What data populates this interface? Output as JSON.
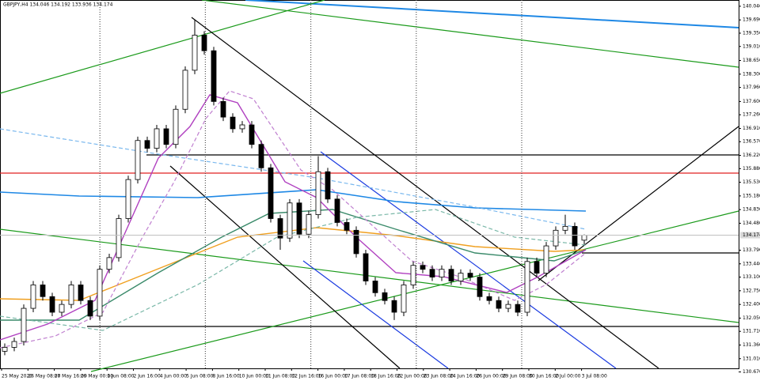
{
  "chart_data": {
    "type": "candlestick",
    "title": "GBPJPY,H4  134.046 134.192 133.936 134.174",
    "open": [
      131.2,
      131.3,
      131.45,
      132.3,
      132.9,
      132.6,
      132.2,
      132.4,
      132.9,
      132.5,
      132.1,
      133.3,
      133.6,
      134.6,
      135.6,
      136.6,
      136.4,
      136.9,
      136.5,
      137.4,
      138.4,
      139.3,
      138.9,
      137.6,
      137.2,
      136.9,
      137.0,
      136.5,
      135.9,
      134.6,
      134.1,
      135.0,
      134.2,
      134.7,
      135.8,
      135.1,
      134.5,
      134.3,
      133.7,
      133.0,
      132.7,
      132.5,
      132.2,
      132.9,
      133.4,
      133.3,
      133.1,
      133.3,
      133.0,
      133.2,
      133.1,
      132.6,
      132.5,
      132.3,
      132.4,
      132.2,
      133.5,
      133.2,
      133.9,
      134.3,
      134.4,
      134.046
    ],
    "high": [
      131.4,
      131.55,
      132.4,
      133.0,
      133.0,
      132.7,
      132.5,
      133.0,
      133.0,
      132.6,
      133.4,
      133.7,
      134.7,
      135.7,
      136.7,
      136.7,
      137.0,
      137.0,
      137.5,
      138.5,
      139.7,
      139.4,
      139.0,
      137.7,
      137.3,
      137.1,
      137.1,
      136.6,
      136.0,
      134.7,
      135.1,
      135.1,
      134.8,
      136.2,
      135.9,
      135.2,
      134.6,
      134.4,
      133.8,
      133.1,
      132.8,
      132.6,
      133.0,
      133.5,
      133.5,
      133.4,
      133.4,
      133.4,
      133.3,
      133.3,
      133.2,
      132.7,
      132.6,
      132.5,
      132.5,
      133.6,
      133.6,
      134.0,
      134.4,
      134.7,
      134.5,
      134.192
    ],
    "low": [
      131.1,
      131.2,
      131.35,
      132.2,
      132.5,
      132.1,
      132.1,
      132.3,
      132.4,
      132.0,
      132.0,
      133.2,
      133.5,
      134.5,
      135.5,
      136.3,
      136.3,
      136.4,
      136.4,
      137.3,
      138.3,
      138.8,
      137.5,
      137.1,
      136.8,
      136.8,
      136.4,
      135.8,
      134.5,
      133.8,
      134.0,
      134.1,
      134.1,
      134.6,
      135.0,
      134.4,
      134.2,
      133.6,
      132.9,
      132.6,
      132.4,
      132.0,
      132.1,
      132.8,
      133.2,
      133.0,
      133.0,
      132.9,
      132.9,
      133.0,
      132.5,
      132.4,
      132.2,
      132.2,
      132.1,
      132.1,
      133.1,
      133.1,
      133.8,
      134.2,
      133.8,
      133.936
    ],
    "close": [
      131.3,
      131.45,
      132.3,
      132.9,
      132.6,
      132.2,
      132.4,
      132.9,
      132.5,
      132.1,
      133.3,
      133.6,
      134.6,
      135.6,
      136.6,
      136.4,
      136.9,
      136.5,
      137.4,
      138.4,
      139.3,
      138.9,
      137.6,
      137.2,
      136.9,
      137.0,
      136.5,
      135.9,
      134.6,
      134.1,
      135.0,
      134.2,
      134.7,
      135.8,
      135.1,
      134.5,
      134.3,
      133.7,
      133.0,
      132.7,
      132.5,
      132.2,
      132.9,
      133.4,
      133.3,
      133.1,
      133.3,
      133.0,
      133.2,
      133.1,
      132.6,
      132.5,
      132.3,
      132.4,
      132.2,
      133.5,
      133.2,
      133.9,
      134.3,
      134.4,
      133.9,
      134.174
    ],
    "xtick_labels": [
      "25 May 2020",
      "26 May 08:00",
      "27 May 16:00",
      "29 May 00:00",
      "1 Jun 08:00",
      "2 Jun 16:00",
      "4 Jun 00:00",
      "5 Jun 08:00",
      "8 Jun 16:00",
      "10 Jun 00:00",
      "11 Jun 08:00",
      "12 Jun 16:00",
      "16 Jun 00:00",
      "17 Jun 08:00",
      "18 Jun 16:00",
      "22 Jun 00:00",
      "23 Jun 08:00",
      "24 Jun 16:00",
      "26 Jun 00:00",
      "29 Jun 08:00",
      "30 Jun 16:00",
      "2 Jul 00:00",
      "3 Jul 08:00"
    ],
    "ylim": [
      130.6,
      140.2
    ],
    "yticks": [
      {
        "value": 140.04,
        "label": "140.040"
      },
      {
        "value": 139.69,
        "label": "139.690"
      },
      {
        "value": 139.35,
        "label": "139.350"
      },
      {
        "value": 139.01,
        "label": "139.010"
      },
      {
        "value": 138.65,
        "label": "138.650"
      },
      {
        "value": 138.3,
        "label": "138.300"
      },
      {
        "value": 137.96,
        "label": "137.960"
      },
      {
        "value": 137.6,
        "label": "137.600"
      },
      {
        "value": 137.26,
        "label": "137.260"
      },
      {
        "value": 136.91,
        "label": "136.910"
      },
      {
        "value": 136.57,
        "label": "136.570"
      },
      {
        "value": 136.22,
        "label": "136.220"
      },
      {
        "value": 135.88,
        "label": "135.880"
      },
      {
        "value": 135.53,
        "label": "135.530"
      },
      {
        "value": 135.18,
        "label": "135.180"
      },
      {
        "value": 134.83,
        "label": "134.830"
      },
      {
        "value": 134.48,
        "label": "134.480"
      },
      {
        "value": 133.79,
        "label": "133.790"
      },
      {
        "value": 133.44,
        "label": "133.440"
      },
      {
        "value": 133.1,
        "label": "133.100"
      },
      {
        "value": 132.75,
        "label": "132.750"
      },
      {
        "value": 132.4,
        "label": "132.400"
      },
      {
        "value": 132.05,
        "label": "132.050"
      },
      {
        "value": 131.71,
        "label": "131.710"
      },
      {
        "value": 131.36,
        "label": "131.360"
      },
      {
        "value": 131.01,
        "label": "131.010"
      },
      {
        "value": 130.67,
        "label": "130.670"
      }
    ],
    "current_price": 134.174,
    "up_color": "#ffffff",
    "down_color": "#000000",
    "candle_outline": "#000000"
  }
}
